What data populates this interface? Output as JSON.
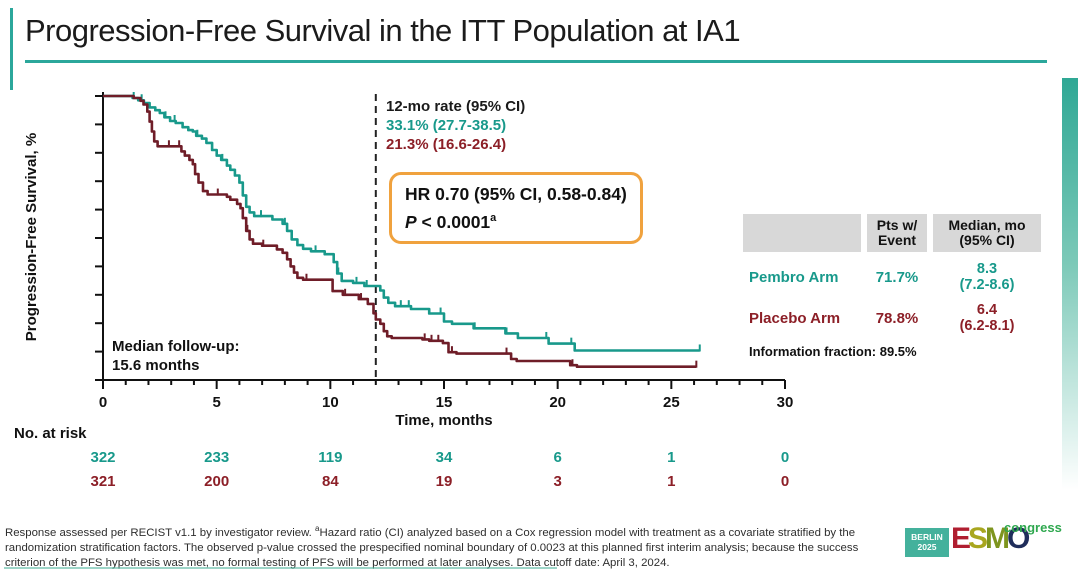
{
  "slide": {
    "title": "Progression-Free Survival in the ITT Population at IA1",
    "accent_color": "#2ba79b"
  },
  "chart_data": {
    "type": "line",
    "subtype": "kaplan-meier-step",
    "xlabel": "Time, months",
    "ylabel": "Progression-Free Survival, %",
    "xlim": [
      0,
      30
    ],
    "ylim": [
      0,
      100
    ],
    "x_ticks_major": [
      0,
      5,
      10,
      15,
      20,
      25,
      30
    ],
    "x_minor_tick_every": 1,
    "y_ticks": [
      0,
      10,
      20,
      30,
      40,
      50,
      60,
      70,
      80,
      90,
      100
    ],
    "reference_line_x": 12,
    "grid": false,
    "series": [
      {
        "name": "Pembro Arm",
        "color": "#18998b",
        "median_months": 8.3,
        "rate_12mo_pct": 33.1,
        "steps": [
          [
            0,
            100
          ],
          [
            1.3,
            99.3
          ],
          [
            1.55,
            98.5
          ],
          [
            1.8,
            97.5
          ],
          [
            2.05,
            96
          ],
          [
            2.3,
            95
          ],
          [
            2.5,
            94
          ],
          [
            2.7,
            92.5
          ],
          [
            2.95,
            91.2
          ],
          [
            3.2,
            90.5
          ],
          [
            3.5,
            89
          ],
          [
            3.75,
            88
          ],
          [
            3.95,
            87.5
          ],
          [
            4.1,
            86
          ],
          [
            4.35,
            85
          ],
          [
            4.55,
            83.5
          ],
          [
            4.8,
            81
          ],
          [
            5.0,
            79
          ],
          [
            5.2,
            77.5
          ],
          [
            5.45,
            75.5
          ],
          [
            5.6,
            74
          ],
          [
            5.8,
            72
          ],
          [
            6.0,
            69.5
          ],
          [
            6.15,
            65
          ],
          [
            6.3,
            61
          ],
          [
            6.45,
            59
          ],
          [
            6.65,
            57.7
          ],
          [
            7.45,
            56.5
          ],
          [
            7.9,
            55
          ],
          [
            8.1,
            52.5
          ],
          [
            8.3,
            49.5
          ],
          [
            8.55,
            47.5
          ],
          [
            8.8,
            46.2
          ],
          [
            9.15,
            45.3
          ],
          [
            9.75,
            44.3
          ],
          [
            10.15,
            41.5
          ],
          [
            10.3,
            37.5
          ],
          [
            10.5,
            34.9
          ],
          [
            11.0,
            34.2
          ],
          [
            11.5,
            33.1
          ],
          [
            12.2,
            31.5
          ],
          [
            12.35,
            29
          ],
          [
            12.55,
            27.2
          ],
          [
            12.85,
            26
          ],
          [
            13.55,
            25
          ],
          [
            14.35,
            23.4
          ],
          [
            15.0,
            20.6
          ],
          [
            15.35,
            19.8
          ],
          [
            16.3,
            18.2
          ],
          [
            17.7,
            16.4
          ],
          [
            18.25,
            14.8
          ],
          [
            19.6,
            12.8
          ],
          [
            20.75,
            10.4
          ],
          [
            26.25,
            10.4
          ]
        ],
        "censor_ticks": [
          1.35,
          1.7,
          2.75,
          3.15,
          4.15,
          5.25,
          6.95,
          8.0,
          9.35,
          10.35,
          11.15,
          11.6,
          13.1,
          13.45,
          14.85,
          16.35,
          17.75,
          19.5,
          20.6,
          26.25
        ]
      },
      {
        "name": "Placebo Arm",
        "color": "#6f1d28",
        "median_months": 6.4,
        "rate_12mo_pct": 21.3,
        "steps": [
          [
            0,
            100
          ],
          [
            1.35,
            99.3
          ],
          [
            1.65,
            98.3
          ],
          [
            1.78,
            97
          ],
          [
            1.95,
            94.5
          ],
          [
            2.05,
            91
          ],
          [
            2.15,
            87.5
          ],
          [
            2.25,
            84
          ],
          [
            2.4,
            82.3
          ],
          [
            3.45,
            80.5
          ],
          [
            3.6,
            79
          ],
          [
            3.8,
            77.5
          ],
          [
            3.95,
            76
          ],
          [
            4.05,
            72.5
          ],
          [
            4.2,
            69.5
          ],
          [
            4.4,
            66.5
          ],
          [
            4.6,
            65.3
          ],
          [
            5.45,
            64.5
          ],
          [
            5.6,
            63.5
          ],
          [
            5.9,
            62
          ],
          [
            6.05,
            60.5
          ],
          [
            6.15,
            57
          ],
          [
            6.3,
            52.5
          ],
          [
            6.45,
            49.5
          ],
          [
            6.6,
            48
          ],
          [
            7.0,
            47.3
          ],
          [
            7.65,
            46
          ],
          [
            7.9,
            44.8
          ],
          [
            8.1,
            42.5
          ],
          [
            8.25,
            40
          ],
          [
            8.4,
            37.8
          ],
          [
            8.55,
            36
          ],
          [
            8.8,
            35.3
          ],
          [
            10.1,
            31.3
          ],
          [
            10.55,
            30
          ],
          [
            11.25,
            28.5
          ],
          [
            11.65,
            26.8
          ],
          [
            11.9,
            23.5
          ],
          [
            12.0,
            21.3
          ],
          [
            12.2,
            19.8
          ],
          [
            12.35,
            17.2
          ],
          [
            12.5,
            15.4
          ],
          [
            12.7,
            14.8
          ],
          [
            14.05,
            14.3
          ],
          [
            14.35,
            13.8
          ],
          [
            14.95,
            13
          ],
          [
            15.2,
            9.8
          ],
          [
            15.55,
            9.3
          ],
          [
            17.95,
            7.4
          ],
          [
            18.2,
            6.7
          ],
          [
            20.55,
            5.2
          ],
          [
            20.85,
            4.7
          ],
          [
            26.1,
            4.7
          ]
        ],
        "censor_ticks": [
          2.9,
          3.35,
          5.05,
          6.35,
          7.05,
          8.95,
          10.65,
          11.35,
          11.9,
          14.15,
          14.45,
          14.75,
          15.35,
          17.75,
          20.65,
          26.1
        ]
      }
    ]
  },
  "annotations": {
    "rate_title": "12-mo rate (95% CI)",
    "pembro_rate": "33.1% (27.7-38.5)",
    "placebo_rate": "21.3% (16.6-26.4)",
    "hr_line1": "HR 0.70 (95% CI, 0.58-0.84)",
    "p_italic": "P",
    "p_rest": " < 0.0001",
    "p_sup": "a",
    "mfu_line1": "Median follow-up:",
    "mfu_line2": "15.6 months"
  },
  "summary_table": {
    "header_col2_line1": "Pts w/",
    "header_col2_line2": "Event",
    "header_col3_line1": "Median, mo",
    "header_col3_line2": "(95% CI)",
    "rows": [
      {
        "arm": "Pembro Arm",
        "pts_w_event": "71.7%",
        "median_line1": "8.3",
        "median_line2": "(7.2-8.6)",
        "color": "#18998b"
      },
      {
        "arm": "Placebo Arm",
        "pts_w_event": "78.8%",
        "median_line1": "6.4",
        "median_line2": "(6.2-8.1)",
        "color": "#8c1f27"
      }
    ],
    "information_fraction": "Information fraction: 89.5%"
  },
  "at_risk": {
    "label": "No. at risk",
    "times": [
      0,
      5,
      10,
      15,
      20,
      25,
      30
    ],
    "rows": [
      {
        "name": "Pembro Arm",
        "color": "#18998b",
        "counts": [
          "322",
          "233",
          "119",
          "34",
          "6",
          "1",
          "0"
        ]
      },
      {
        "name": "Placebo Arm",
        "color": "#8c1f27",
        "counts": [
          "321",
          "200",
          "84",
          "19",
          "3",
          "1",
          "0"
        ]
      }
    ]
  },
  "footer": {
    "line1_pre": "Response assessed per RECIST v1.1 by investigator review. ",
    "line1_sup": "a",
    "line1_post": "Hazard ratio (CI) analyzed based on a Cox regression model with treatment as a covariate stratified by the",
    "line2": "randomization stratification factors. The observed p-value crossed the prespecified nominal boundary of 0.0023 at this planned first interim analysis; because the success",
    "line3": "criterion of the PFS hypothesis was met, no formal testing of PFS will be performed at later analyses. Data cutoff date: April 3, 2024."
  },
  "logo": {
    "berlin_line1": "BERLIN",
    "berlin_line2": "2025",
    "letters": [
      {
        "ch": "E",
        "color": "#b01e30"
      },
      {
        "ch": "S",
        "color": "#a8a61f"
      },
      {
        "ch": "M",
        "color": "#7e951f"
      },
      {
        "ch": "O",
        "color": "#1f2d5a"
      }
    ],
    "congress": "congress"
  }
}
